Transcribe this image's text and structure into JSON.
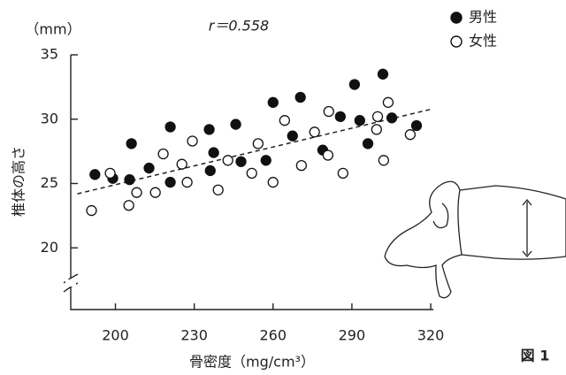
{
  "chart_data": {
    "type": "scatter",
    "unit_label": "（mm）",
    "annotation": "r＝0.558",
    "ylabel": "椎体の高さ",
    "xlabel": "骨密度（mg/cm³）",
    "figure_label": "図 1",
    "xlim": [
      183,
      321
    ],
    "ylim": [
      15,
      35
    ],
    "xticks": [
      200,
      230,
      260,
      290,
      320
    ],
    "yticks": [
      20,
      25,
      30,
      35
    ],
    "series": [
      {
        "name": "男性",
        "color": "#111111",
        "filled": true,
        "x": [
          192.2,
          199.0,
          206.1,
          205.4,
          212.8,
          220.9,
          220.9,
          235.7,
          237.4,
          236.1,
          245.8,
          247.8,
          257.3,
          260.0,
          267.4,
          270.4,
          278.9,
          285.6,
          296.1,
          291.0,
          293.0,
          301.8,
          305.2,
          314.6
        ],
        "values": [
          25.7,
          25.4,
          28.1,
          25.3,
          26.2,
          29.4,
          25.1,
          29.2,
          27.4,
          26.0,
          29.6,
          26.7,
          26.8,
          31.3,
          28.7,
          31.7,
          27.6,
          30.2,
          28.1,
          32.7,
          29.9,
          33.5,
          30.1,
          29.5
        ]
      },
      {
        "name": "女性",
        "color": "#111111",
        "filled": false,
        "x": [
          190.9,
          198.0,
          205.1,
          208.1,
          215.2,
          218.2,
          225.3,
          227.3,
          229.3,
          239.1,
          242.8,
          251.9,
          254.3,
          260.0,
          264.4,
          270.8,
          275.8,
          280.9,
          281.2,
          286.6,
          299.4,
          302.1,
          299.8,
          303.8,
          312.2
        ],
        "values": [
          22.9,
          25.8,
          23.3,
          24.3,
          24.3,
          27.3,
          26.5,
          25.1,
          28.3,
          24.5,
          26.8,
          25.8,
          28.1,
          25.1,
          29.9,
          26.4,
          29.0,
          27.2,
          30.6,
          25.8,
          29.2,
          26.8,
          30.2,
          31.3,
          28.8
        ]
      }
    ],
    "trendline": {
      "x": [
        185.5,
        320.7
      ],
      "values": [
        24.2,
        30.8
      ]
    }
  }
}
